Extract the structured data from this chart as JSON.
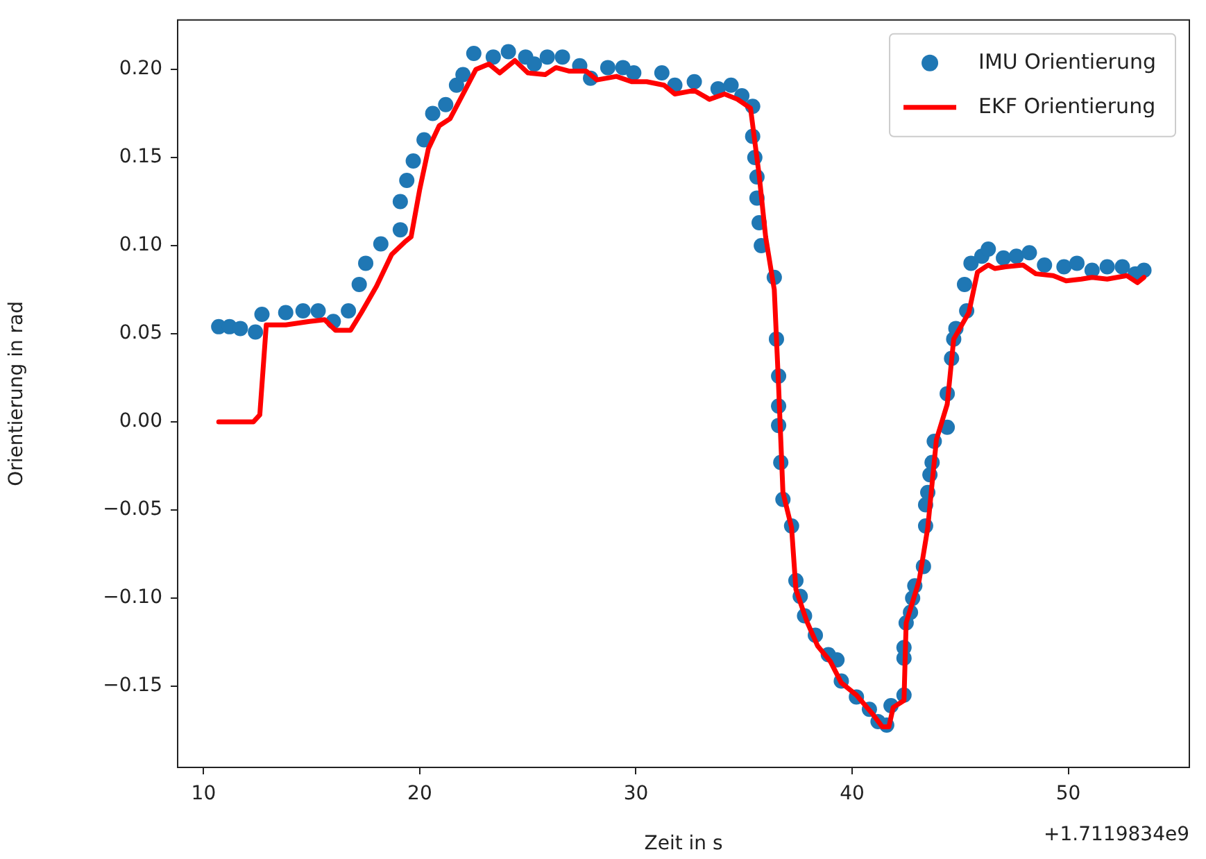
{
  "chart_data": {
    "type": "scatter",
    "xlabel": "Zeit in s",
    "ylabel": "Orientierung in rad",
    "annotations": [
      "+1.7119834e9"
    ],
    "xlim": [
      8.8,
      55.6
    ],
    "xticks": [
      10,
      20,
      30,
      40,
      50
    ],
    "ylim": [
      -0.196,
      0.228
    ],
    "yticks": [
      {
        "value": -0.15,
        "label": "−0.15"
      },
      {
        "value": -0.1,
        "label": "−0.10"
      },
      {
        "value": -0.05,
        "label": "−0.05"
      },
      {
        "value": 0,
        "label": "0.00"
      },
      {
        "value": 0.05,
        "label": "0.05"
      },
      {
        "value": 0.1,
        "label": "0.10"
      },
      {
        "value": 0.15,
        "label": "0.15"
      },
      {
        "value": 0.2,
        "label": "0.20"
      }
    ],
    "grid": false,
    "legend": "top right",
    "series": [
      {
        "name": "IMU Orientierung",
        "color": "#1f77b4",
        "x": [
          10.7,
          11.2,
          11.7,
          12.4,
          12.7,
          13.8,
          14.6,
          15.3,
          16.0,
          16.7,
          17.2,
          17.5,
          18.2,
          19.1,
          19.1,
          19.4,
          19.7,
          20.2,
          20.6,
          21.2,
          21.7,
          22.0,
          22.5,
          23.4,
          24.1,
          24.9,
          25.3,
          25.9,
          26.6,
          27.4,
          27.9,
          28.7,
          29.4,
          29.9,
          31.2,
          31.8,
          32.7,
          33.8,
          34.4,
          34.9,
          35.4,
          35.4,
          35.5,
          35.6,
          35.6,
          35.7,
          35.8,
          36.4,
          36.5,
          36.6,
          36.6,
          36.6,
          36.7,
          36.8,
          37.2,
          37.4,
          37.6,
          37.8,
          38.3,
          38.9,
          39.3,
          39.5,
          40.2,
          40.8,
          41.2,
          41.6,
          41.8,
          42.4,
          42.4,
          42.4,
          42.5,
          42.7,
          42.8,
          42.9,
          43.3,
          43.4,
          43.4,
          43.5,
          43.6,
          43.7,
          43.8,
          44.4,
          44.4,
          44.6,
          44.7,
          44.8,
          45.3,
          45.2,
          45.5,
          46.0,
          46.3,
          47.0,
          47.6,
          48.2,
          48.9,
          49.8,
          50.4,
          51.1,
          51.8,
          52.5,
          53.1,
          53.5
        ],
        "values": [
          0.054,
          0.054,
          0.053,
          0.051,
          0.061,
          0.062,
          0.063,
          0.063,
          0.057,
          0.063,
          0.078,
          0.09,
          0.101,
          0.109,
          0.125,
          0.137,
          0.148,
          0.16,
          0.175,
          0.18,
          0.191,
          0.197,
          0.209,
          0.207,
          0.21,
          0.207,
          0.203,
          0.207,
          0.207,
          0.202,
          0.195,
          0.201,
          0.201,
          0.198,
          0.198,
          0.191,
          0.193,
          0.189,
          0.191,
          0.185,
          0.179,
          0.162,
          0.15,
          0.139,
          0.127,
          0.113,
          0.1,
          0.082,
          0.047,
          0.026,
          0.009,
          -0.002,
          -0.023,
          -0.044,
          -0.059,
          -0.09,
          -0.099,
          -0.11,
          -0.121,
          -0.132,
          -0.135,
          -0.147,
          -0.156,
          -0.163,
          -0.17,
          -0.172,
          -0.161,
          -0.155,
          -0.134,
          -0.128,
          -0.114,
          -0.108,
          -0.1,
          -0.093,
          -0.082,
          -0.059,
          -0.047,
          -0.04,
          -0.03,
          -0.023,
          -0.011,
          -0.003,
          0.016,
          0.036,
          0.047,
          0.053,
          0.063,
          0.078,
          0.09,
          0.094,
          0.098,
          0.093,
          0.094,
          0.096,
          0.089,
          0.088,
          0.09,
          0.086,
          0.088,
          0.088,
          0.084,
          0.086
        ]
      },
      {
        "name": "EKF Orientierung",
        "type": "line",
        "color": "#ff0000",
        "x": [
          10.7,
          12.3,
          12.6,
          12.9,
          13.8,
          14.9,
          15.6,
          16.1,
          16.8,
          17.3,
          18.0,
          18.7,
          19.3,
          19.6,
          20.0,
          20.4,
          20.9,
          21.4,
          22.0,
          22.6,
          23.2,
          23.7,
          24.4,
          25.0,
          25.8,
          26.3,
          26.9,
          27.7,
          28.2,
          29.1,
          29.8,
          30.5,
          31.3,
          31.8,
          32.7,
          33.4,
          34.1,
          34.7,
          35.3,
          35.7,
          36.0,
          36.4,
          36.6,
          36.8,
          37.2,
          37.4,
          37.9,
          38.4,
          39.0,
          39.5,
          40.2,
          40.9,
          41.4,
          41.7,
          41.9,
          42.4,
          42.5,
          43.1,
          43.5,
          43.9,
          44.4,
          44.7,
          45.4,
          45.8,
          46.3,
          46.6,
          47.1,
          47.9,
          48.5,
          49.3,
          49.9,
          50.6,
          51.1,
          51.8,
          52.7,
          53.2,
          53.5
        ],
        "values": [
          0,
          0,
          0.004,
          0.055,
          0.055,
          0.057,
          0.058,
          0.052,
          0.052,
          0.062,
          0.077,
          0.095,
          0.102,
          0.105,
          0.132,
          0.155,
          0.168,
          0.172,
          0.186,
          0.2,
          0.203,
          0.198,
          0.205,
          0.198,
          0.197,
          0.201,
          0.199,
          0.199,
          0.194,
          0.196,
          0.193,
          0.193,
          0.191,
          0.186,
          0.188,
          0.183,
          0.186,
          0.183,
          0.178,
          0.14,
          0.105,
          0.075,
          0.02,
          -0.04,
          -0.06,
          -0.095,
          -0.113,
          -0.127,
          -0.136,
          -0.148,
          -0.155,
          -0.165,
          -0.173,
          -0.173,
          -0.162,
          -0.158,
          -0.114,
          -0.09,
          -0.06,
          -0.01,
          0.01,
          0.047,
          0.062,
          0.085,
          0.089,
          0.087,
          0.088,
          0.089,
          0.084,
          0.083,
          0.08,
          0.081,
          0.082,
          0.081,
          0.083,
          0.079,
          0.082
        ]
      }
    ]
  }
}
